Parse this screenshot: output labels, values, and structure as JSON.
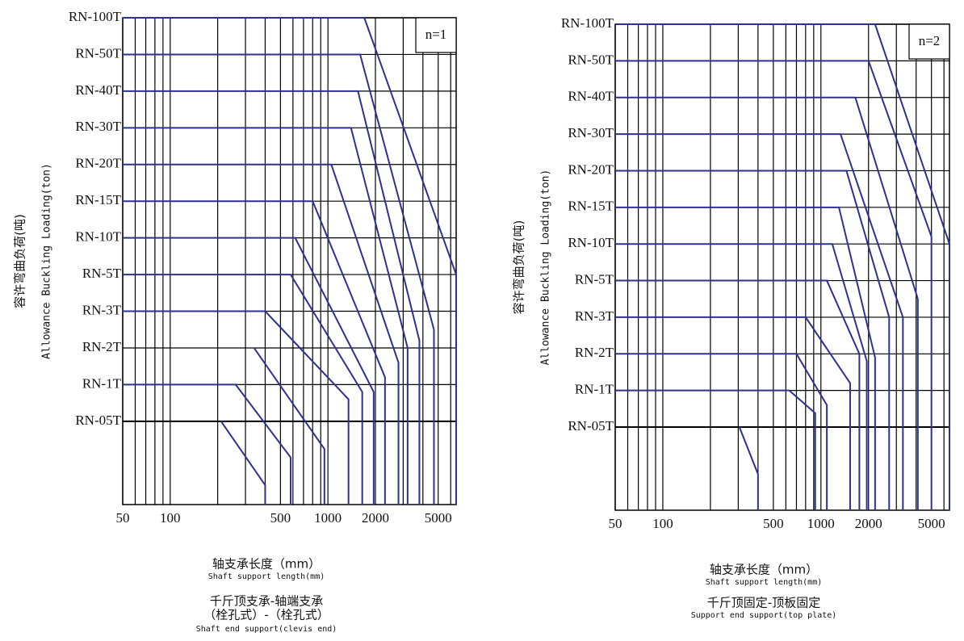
{
  "chart_data": [
    {
      "type": "line",
      "annotation": "n=1",
      "y_label": [
        "容许弯曲负荷(吨)",
        "Allowance Buckling Loading(ton)"
      ],
      "x_label": [
        "轴支承长度（mm）",
        "Shaft support length(mm)"
      ],
      "caption": [
        "千斤顶支承-轴端支承",
        "（栓孔式）-（栓孔式）",
        "Shaft end support(clevis end)"
      ],
      "log_x": true,
      "grid": true,
      "xlim": [
        50,
        6500
      ],
      "xticks": [
        50,
        100,
        500,
        1000,
        2000,
        5000
      ],
      "ylim": [
        0.2,
        100
      ],
      "yticks": [
        {
          "value": 100,
          "label": "RN-100T"
        },
        {
          "value": 50,
          "label": "RN-50T"
        },
        {
          "value": 40,
          "label": "RN-40T"
        },
        {
          "value": 30,
          "label": "RN-30T"
        },
        {
          "value": 20,
          "label": "RN-20T"
        },
        {
          "value": 15,
          "label": "RN-15T"
        },
        {
          "value": 10,
          "label": "RN-10T"
        },
        {
          "value": 5,
          "label": "RN-5T"
        },
        {
          "value": 3,
          "label": "RN-3T"
        },
        {
          "value": 2,
          "label": "RN-2T"
        },
        {
          "value": 1,
          "label": "RN-1T"
        },
        {
          "value": 0.5,
          "label": "RN-05T"
        }
      ],
      "series": [
        {
          "color": "#2e3192",
          "x": [
            50,
            1700,
            6500,
            6500
          ],
          "values": [
            100,
            100,
            5,
            0.2
          ]
        },
        {
          "color": "#2e3192",
          "x": [
            50,
            1600,
            4700,
            4700
          ],
          "values": [
            50,
            50,
            2.5,
            0.2
          ]
        },
        {
          "color": "#2e3192",
          "x": [
            50,
            1550,
            3800,
            3800
          ],
          "values": [
            40,
            40,
            2.2,
            0.2
          ]
        },
        {
          "color": "#2e3192",
          "x": [
            50,
            1400,
            3200,
            3200
          ],
          "values": [
            30,
            30,
            2,
            0.2
          ]
        },
        {
          "color": "#2e3192",
          "x": [
            50,
            1050,
            2800,
            2800
          ],
          "values": [
            20,
            20,
            1.6,
            0.2
          ]
        },
        {
          "color": "#2e3192",
          "x": [
            50,
            800,
            2300,
            2300
          ],
          "values": [
            15,
            15,
            1.2,
            0.2
          ]
        },
        {
          "color": "#2e3192",
          "x": [
            50,
            620,
            1950,
            1950
          ],
          "values": [
            10,
            10,
            0.9,
            0.2
          ]
        },
        {
          "color": "#2e3192",
          "x": [
            50,
            580,
            1650,
            1650
          ],
          "values": [
            5,
            5,
            0.9,
            0.2
          ]
        },
        {
          "color": "#2e3192",
          "x": [
            50,
            400,
            1350,
            1350
          ],
          "values": [
            3,
            3,
            0.8,
            0.2
          ]
        },
        {
          "color": "#2e3192",
          "x": [
            340,
            950,
            950
          ],
          "values": [
            2,
            0.4,
            0.2
          ]
        },
        {
          "color": "#2e3192",
          "x": [
            50,
            260,
            580,
            580
          ],
          "values": [
            1,
            1,
            0.37,
            0.2
          ]
        },
        {
          "color": "#2e3192",
          "x": [
            210,
            400,
            400
          ],
          "values": [
            0.5,
            0.27,
            0.2
          ]
        }
      ]
    },
    {
      "type": "line",
      "annotation": "n=2",
      "y_label": [
        "容许弯曲负荷(吨)",
        "Allowance Buckling Loading(ton)"
      ],
      "x_label": [
        "轴支承长度（mm）",
        "Shaft support length(mm)"
      ],
      "caption": [
        "千斤顶固定-顶板固定",
        "Support end support(top plate)"
      ],
      "log_x": true,
      "grid": true,
      "xlim": [
        50,
        6500
      ],
      "xticks": [
        50,
        100,
        500,
        1000,
        2000,
        5000
      ],
      "ylim": [
        0.2,
        100
      ],
      "yticks": [
        {
          "value": 100,
          "label": "RN-100T"
        },
        {
          "value": 50,
          "label": "RN-50T"
        },
        {
          "value": 40,
          "label": "RN-40T"
        },
        {
          "value": 30,
          "label": "RN-30T"
        },
        {
          "value": 20,
          "label": "RN-20T"
        },
        {
          "value": 15,
          "label": "RN-15T"
        },
        {
          "value": 10,
          "label": "RN-10T"
        },
        {
          "value": 5,
          "label": "RN-5T"
        },
        {
          "value": 3,
          "label": "RN-3T"
        },
        {
          "value": 2,
          "label": "RN-2T"
        },
        {
          "value": 1,
          "label": "RN-1T"
        },
        {
          "value": 0.5,
          "label": "RN-05T"
        }
      ],
      "series": [
        {
          "color": "#2e3192",
          "x": [
            50,
            2200,
            6500,
            6500
          ],
          "values": [
            100,
            100,
            10,
            0.2
          ]
        },
        {
          "color": "#2e3192",
          "x": [
            50,
            2000,
            5000,
            5000
          ],
          "values": [
            50,
            50,
            11,
            0.2
          ]
        },
        {
          "color": "#2e3192",
          "x": [
            50,
            1650,
            4100,
            4100
          ],
          "values": [
            40,
            40,
            4,
            0.2
          ]
        },
        {
          "color": "#2e3192",
          "x": [
            50,
            1330,
            3300,
            3300
          ],
          "values": [
            30,
            30,
            3,
            0.2
          ]
        },
        {
          "color": "#2e3192",
          "x": [
            50,
            1450,
            2700,
            2700
          ],
          "values": [
            20,
            20,
            3,
            0.2
          ]
        },
        {
          "color": "#2e3192",
          "x": [
            50,
            1300,
            2200,
            2200
          ],
          "values": [
            15,
            15,
            1.9,
            0.2
          ]
        },
        {
          "color": "#2e3192",
          "x": [
            50,
            1180,
            1950,
            1950
          ],
          "values": [
            10,
            10,
            1.8,
            0.2
          ]
        },
        {
          "color": "#2e3192",
          "x": [
            50,
            1090,
            1750,
            1750
          ],
          "values": [
            5,
            5,
            2,
            0.2
          ]
        },
        {
          "color": "#2e3192",
          "x": [
            50,
            800,
            1530,
            1530
          ],
          "values": [
            3,
            3,
            1.2,
            0.2
          ]
        },
        {
          "color": "#2e3192",
          "x": [
            50,
            700,
            1090,
            1090
          ],
          "values": [
            2,
            2,
            0.8,
            0.2
          ]
        },
        {
          "color": "#2e3192",
          "x": [
            50,
            630,
            920,
            920
          ],
          "values": [
            1,
            1,
            0.69,
            0.2
          ]
        },
        {
          "color": "#2e3192",
          "x": [
            305,
            400,
            400
          ],
          "values": [
            0.5,
            0.33,
            0.2
          ]
        }
      ]
    }
  ]
}
